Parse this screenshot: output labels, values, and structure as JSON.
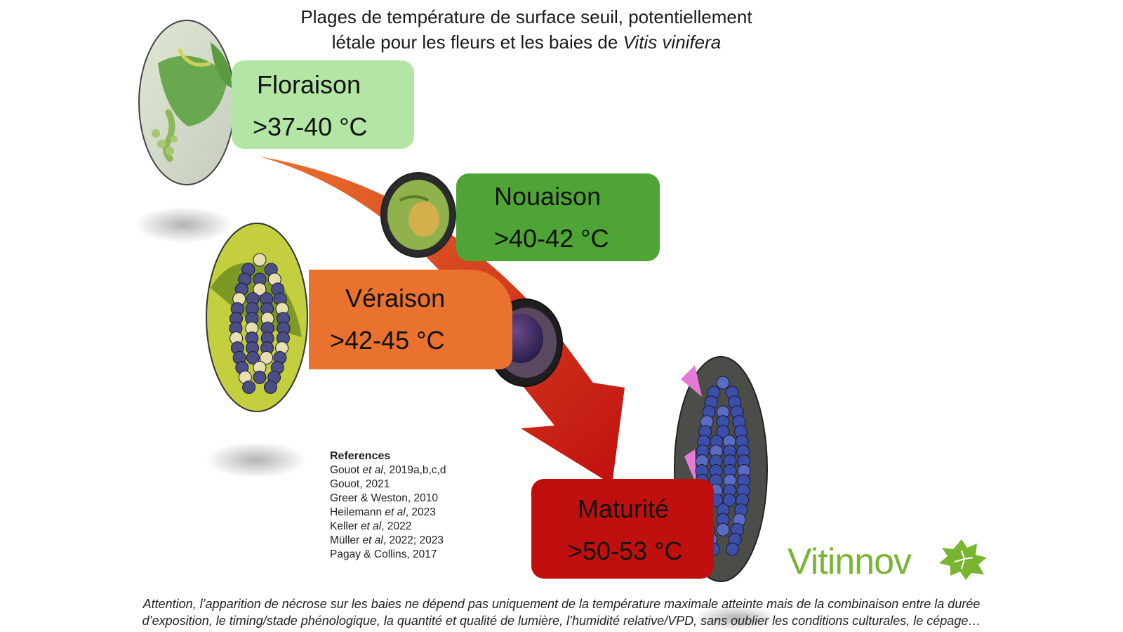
{
  "title": {
    "line1": "Plages de température de surface seuil, potentiellement",
    "line2_prefix": "létale pour les fleurs et les baies de ",
    "line2_italic": "Vitis vinifera"
  },
  "stages": [
    {
      "name": "Floraison",
      "temp": ">37-40 °C",
      "color": "#b3e6a5"
    },
    {
      "name": "Nouaison",
      "temp": ">40-42 °C",
      "color": "#4ea535"
    },
    {
      "name": "Véraison",
      "temp": ">42-45 °C",
      "color": "#e8722e"
    },
    {
      "name": "Maturité",
      "temp": ">50-53 °C",
      "color": "#c00f0f"
    }
  ],
  "references": {
    "heading": "References",
    "items": [
      {
        "a": "Gouot ",
        "i": "et al",
        "b": ", 2019a,b,c,d"
      },
      {
        "a": "Gouot, 2021",
        "i": "",
        "b": ""
      },
      {
        "a": "Greer & Weston, 2010",
        "i": "",
        "b": ""
      },
      {
        "a": "Heilemann ",
        "i": "et al",
        "b": ", 2023"
      },
      {
        "a": "Keller ",
        "i": "et al",
        "b": ", 2022"
      },
      {
        "a": "Müller ",
        "i": "et al",
        "b": ", 2022; 2023"
      },
      {
        "a": "Pagay & Collins, 2017",
        "i": "",
        "b": ""
      }
    ]
  },
  "note": {
    "line1": "Attention, l’apparition de nécrose sur les baies ne dépend pas uniquement de la température maximale atteinte mais de la combinaison entre la durée",
    "line2": "d’exposition, le timing/stade phénologique, la quantité et qualité de lumière, l’humidité relative/VPD, sans oublier les conditions culturales, le cépage…"
  },
  "logo": {
    "text": "Vitinnov",
    "color": "#7ab532"
  },
  "arrow_colors": {
    "start": "#e8722e",
    "end": "#c00f0f"
  }
}
